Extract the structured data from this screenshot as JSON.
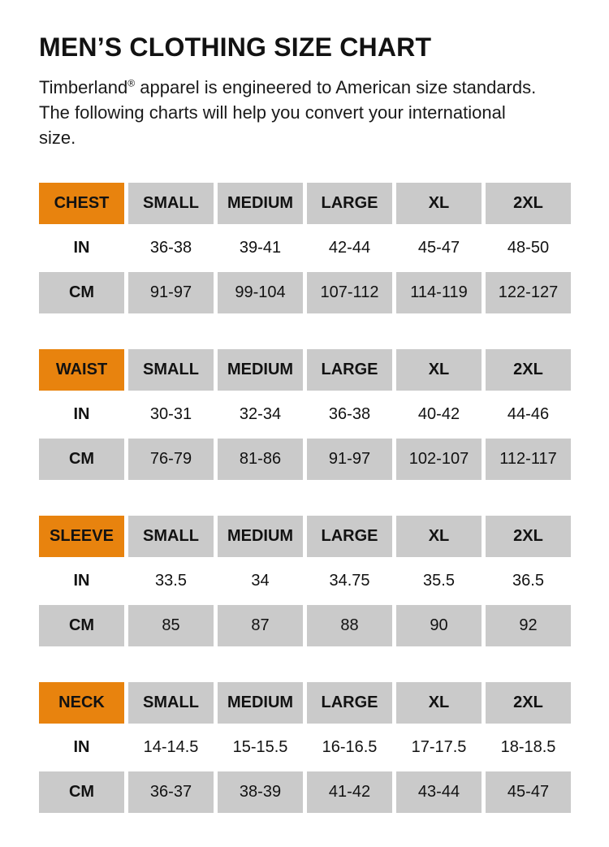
{
  "page": {
    "title": "MEN’S CLOTHING SIZE CHART"
  },
  "intro": {
    "brand": "Timberland",
    "registered_mark": "®",
    "line1_rest": " apparel is engineered to American size standards. The following charts will help you convert your international size."
  },
  "colors": {
    "accent_orange": "#E8830E",
    "cell_gray": "#CACACA",
    "text": "#121212",
    "background": "#FFFFFF"
  },
  "size_labels": [
    "SMALL",
    "MEDIUM",
    "LARGE",
    "XL",
    "2XL"
  ],
  "tables": [
    {
      "label": "CHEST",
      "rows": [
        {
          "unit": "IN",
          "values": [
            "36-38",
            "39-41",
            "42-44",
            "45-47",
            "48-50"
          ]
        },
        {
          "unit": "CM",
          "values": [
            "91-97",
            "99-104",
            "107-112",
            "114-119",
            "122-127"
          ]
        }
      ]
    },
    {
      "label": "WAIST",
      "rows": [
        {
          "unit": "IN",
          "values": [
            "30-31",
            "32-34",
            "36-38",
            "40-42",
            "44-46"
          ]
        },
        {
          "unit": "CM",
          "values": [
            "76-79",
            "81-86",
            "91-97",
            "102-107",
            "112-117"
          ]
        }
      ]
    },
    {
      "label": "SLEEVE",
      "rows": [
        {
          "unit": "IN",
          "values": [
            "33.5",
            "34",
            "34.75",
            "35.5",
            "36.5"
          ]
        },
        {
          "unit": "CM",
          "values": [
            "85",
            "87",
            "88",
            "90",
            "92"
          ]
        }
      ]
    },
    {
      "label": "NECK",
      "rows": [
        {
          "unit": "IN",
          "values": [
            "14-14.5",
            "15-15.5",
            "16-16.5",
            "17-17.5",
            "18-18.5"
          ]
        },
        {
          "unit": "CM",
          "values": [
            "36-37",
            "38-39",
            "41-42",
            "43-44",
            "45-47"
          ]
        }
      ]
    }
  ]
}
